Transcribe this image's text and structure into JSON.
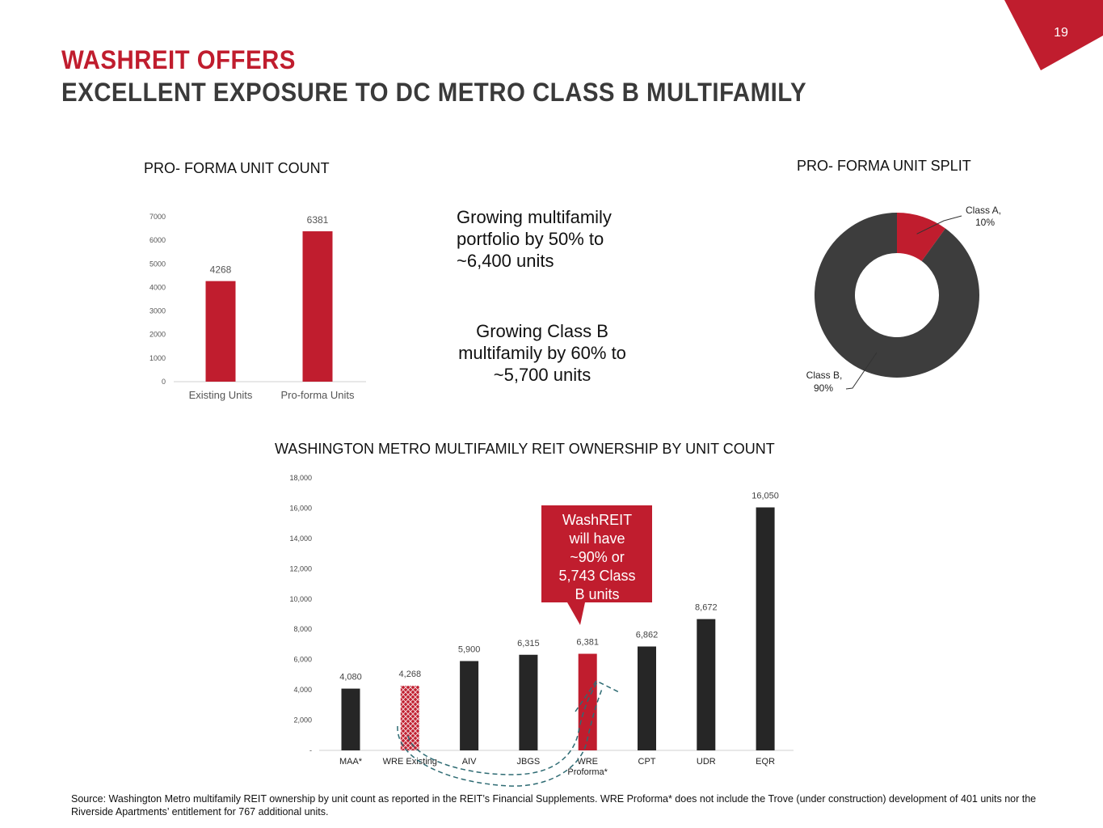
{
  "page": {
    "number": "19"
  },
  "header": {
    "title_line1": "WASHREIT OFFERS",
    "title_line2": "EXCELLENT EXPOSURE TO DC METRO CLASS B MULTIFAMILY"
  },
  "callouts": {
    "growth_multifamily": "Growing multifamily portfolio by 50% to ~6,400 units",
    "growth_class_b": "Growing Class B multifamily by 60% to ~5,700 units",
    "washreit_bubble": "WashREIT will have ~90% or 5,743 Class B units"
  },
  "colors": {
    "accent": "#c01d2e",
    "dark": "#262626",
    "donut_dark": "#3d3d3d",
    "arrow": "#2e6b73"
  },
  "footer": {
    "source": "Source: Washington Metro multifamily REIT ownership by unit count as reported in the REIT’s Financial Supplements. WRE Proforma* does not include the Trove (under construction) development of 401 units nor the Riverside Apartments’ entitlement for 767 additional units."
  },
  "chart_data": [
    {
      "type": "bar",
      "title": "PRO- FORMA UNIT COUNT",
      "categories": [
        "Existing Units",
        "Pro-forma Units"
      ],
      "values": [
        4268,
        6381
      ],
      "data_labels": [
        "4268",
        "6381"
      ],
      "yticks": [
        0,
        1000,
        2000,
        3000,
        4000,
        5000,
        6000,
        7000
      ],
      "ytick_labels": [
        "0",
        "1000",
        "2000",
        "3000",
        "4000",
        "5000",
        "6000",
        "7000"
      ],
      "ylim": [
        0,
        7000
      ]
    },
    {
      "type": "pie",
      "style": "donut",
      "title": "PRO- FORMA UNIT SPLIT",
      "slices": [
        {
          "label": "Class A,",
          "pct_label": "10%",
          "value": 10,
          "color": "#c01d2e"
        },
        {
          "label": "Class B,",
          "pct_label": "90%",
          "value": 90,
          "color": "#3d3d3d"
        }
      ]
    },
    {
      "type": "bar",
      "title": "WASHINGTON METRO MULTIFAMILY REIT OWNERSHIP BY UNIT COUNT",
      "categories": [
        "MAA*",
        "WRE Existing",
        "AIV",
        "JBGS",
        "WRE Proforma*",
        "CPT",
        "UDR",
        "EQR"
      ],
      "category_lines": [
        [
          "MAA*"
        ],
        [
          "WRE Existing"
        ],
        [
          "AIV"
        ],
        [
          "JBGS"
        ],
        [
          "WRE",
          "Proforma*"
        ],
        [
          "CPT"
        ],
        [
          "UDR"
        ],
        [
          "EQR"
        ]
      ],
      "values": [
        4080,
        4268,
        5900,
        6315,
        6381,
        6862,
        8672,
        16050
      ],
      "data_labels": [
        "4,080",
        "4,268",
        "5,900",
        "6,315",
        "6,381",
        "6,862",
        "8,672",
        "16,050"
      ],
      "bar_styles": [
        "dark",
        "hatched",
        "dark",
        "dark",
        "red",
        "dark",
        "dark",
        "dark"
      ],
      "yticks": [
        0,
        2000,
        4000,
        6000,
        8000,
        10000,
        12000,
        14000,
        16000,
        18000
      ],
      "ytick_labels": [
        "-",
        "2,000",
        "4,000",
        "6,000",
        "8,000",
        "10,000",
        "12,000",
        "14,000",
        "16,000",
        "18,000"
      ],
      "ylim": [
        0,
        18000
      ]
    }
  ]
}
